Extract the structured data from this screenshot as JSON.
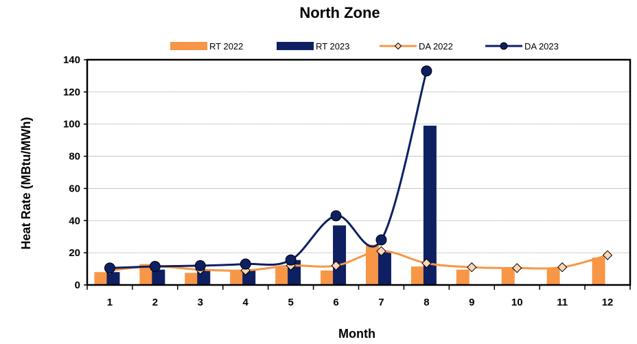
{
  "chart_data": {
    "type": "bar",
    "title": "North Zone",
    "xlabel": "Month",
    "ylabel": "Heat Rate (MBtu/MWh)",
    "categories": [
      "1",
      "2",
      "3",
      "4",
      "5",
      "6",
      "7",
      "8",
      "9",
      "10",
      "11",
      "12"
    ],
    "ylim": [
      0,
      140
    ],
    "yticks": [
      0,
      20,
      40,
      60,
      80,
      100,
      120,
      140
    ],
    "grid": true,
    "legend_position": "top",
    "series": [
      {
        "name": "RT 2022",
        "kind": "bar",
        "color": "#F79646",
        "values": [
          8,
          13,
          7.5,
          9,
          11,
          9,
          25,
          11.5,
          9.5,
          10,
          10,
          17
        ]
      },
      {
        "name": "RT 2023",
        "kind": "bar",
        "color": "#0E2062",
        "values": [
          8,
          9.5,
          9,
          9,
          15.5,
          37,
          21,
          99,
          null,
          null,
          null,
          null
        ]
      },
      {
        "name": "DA 2022",
        "kind": "line",
        "marker": "diamond",
        "color": "#F79646",
        "values": [
          9,
          11.5,
          9.5,
          9,
          12,
          12,
          21,
          13.5,
          11,
          10.5,
          11,
          18.5
        ]
      },
      {
        "name": "DA 2023",
        "kind": "line",
        "marker": "circle",
        "color": "#0E2062",
        "values": [
          10.5,
          11.5,
          12,
          13,
          15.5,
          43,
          28,
          133,
          null,
          null,
          null,
          null
        ]
      }
    ]
  }
}
